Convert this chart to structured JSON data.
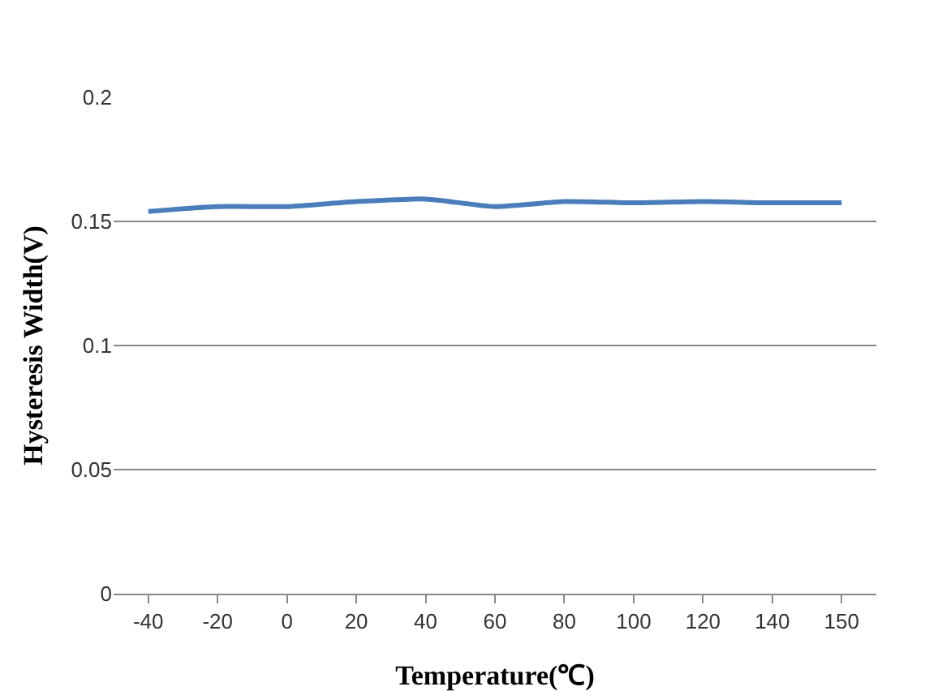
{
  "chart_data": {
    "type": "line",
    "xlabel": "Temperature(℃)",
    "ylabel": "Hysteresis Width(V)",
    "categories": [
      "-40",
      "-20",
      "0",
      "20",
      "40",
      "60",
      "80",
      "100",
      "120",
      "140",
      "150"
    ],
    "series": [
      {
        "color": "#4a7ebb",
        "values": [
          0.154,
          0.156,
          0.156,
          0.158,
          0.159,
          0.156,
          0.158,
          0.1575,
          0.158,
          0.1575,
          0.1575
        ]
      }
    ],
    "ylim": [
      0,
      0.2
    ],
    "yticks": [
      0,
      0.05,
      0.1,
      0.15,
      0.2
    ],
    "grid": "y",
    "marker": "none",
    "line_style": "solid"
  }
}
